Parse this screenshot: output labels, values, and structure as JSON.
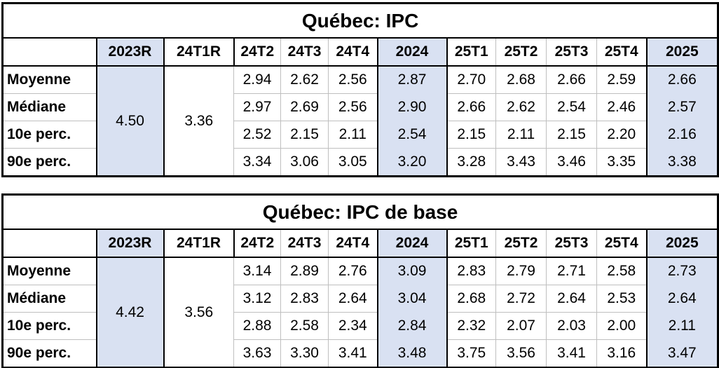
{
  "colors": {
    "highlight": "#d9e1f2",
    "grid_gray": "#bfbfbf",
    "border_black": "#000000"
  },
  "columns": [
    "",
    "2023R",
    "24T1R",
    "24T2",
    "24T3",
    "24T4",
    "2024",
    "25T1",
    "25T2",
    "25T3",
    "25T4",
    "2025"
  ],
  "tables": [
    {
      "title": "Québec: IPC",
      "merged_2023R": "4.50",
      "merged_24T1R": "3.36",
      "rows": [
        {
          "label": "Moyenne",
          "values": [
            "2.94",
            "2.62",
            "2.56",
            "2.87",
            "2.70",
            "2.68",
            "2.66",
            "2.59",
            "2.66"
          ]
        },
        {
          "label": "Médiane",
          "values": [
            "2.97",
            "2.69",
            "2.56",
            "2.90",
            "2.66",
            "2.62",
            "2.54",
            "2.46",
            "2.57"
          ]
        },
        {
          "label": "10e perc.",
          "values": [
            "2.52",
            "2.15",
            "2.11",
            "2.54",
            "2.15",
            "2.11",
            "2.15",
            "2.20",
            "2.16"
          ]
        },
        {
          "label": "90e perc.",
          "values": [
            "3.34",
            "3.06",
            "3.05",
            "3.20",
            "3.28",
            "3.43",
            "3.46",
            "3.35",
            "3.38"
          ]
        }
      ]
    },
    {
      "title": "Québec: IPC de base",
      "merged_2023R": "4.42",
      "merged_24T1R": "3.56",
      "rows": [
        {
          "label": "Moyenne",
          "values": [
            "3.14",
            "2.89",
            "2.76",
            "3.09",
            "2.83",
            "2.79",
            "2.71",
            "2.58",
            "2.73"
          ]
        },
        {
          "label": "Médiane",
          "values": [
            "3.12",
            "2.83",
            "2.64",
            "3.04",
            "2.68",
            "2.72",
            "2.64",
            "2.53",
            "2.64"
          ]
        },
        {
          "label": "10e perc.",
          "values": [
            "2.88",
            "2.58",
            "2.34",
            "2.84",
            "2.32",
            "2.07",
            "2.03",
            "2.00",
            "2.11"
          ]
        },
        {
          "label": "90e perc.",
          "values": [
            "3.63",
            "3.30",
            "3.41",
            "3.48",
            "3.75",
            "3.56",
            "3.41",
            "3.16",
            "3.47"
          ]
        }
      ]
    }
  ]
}
